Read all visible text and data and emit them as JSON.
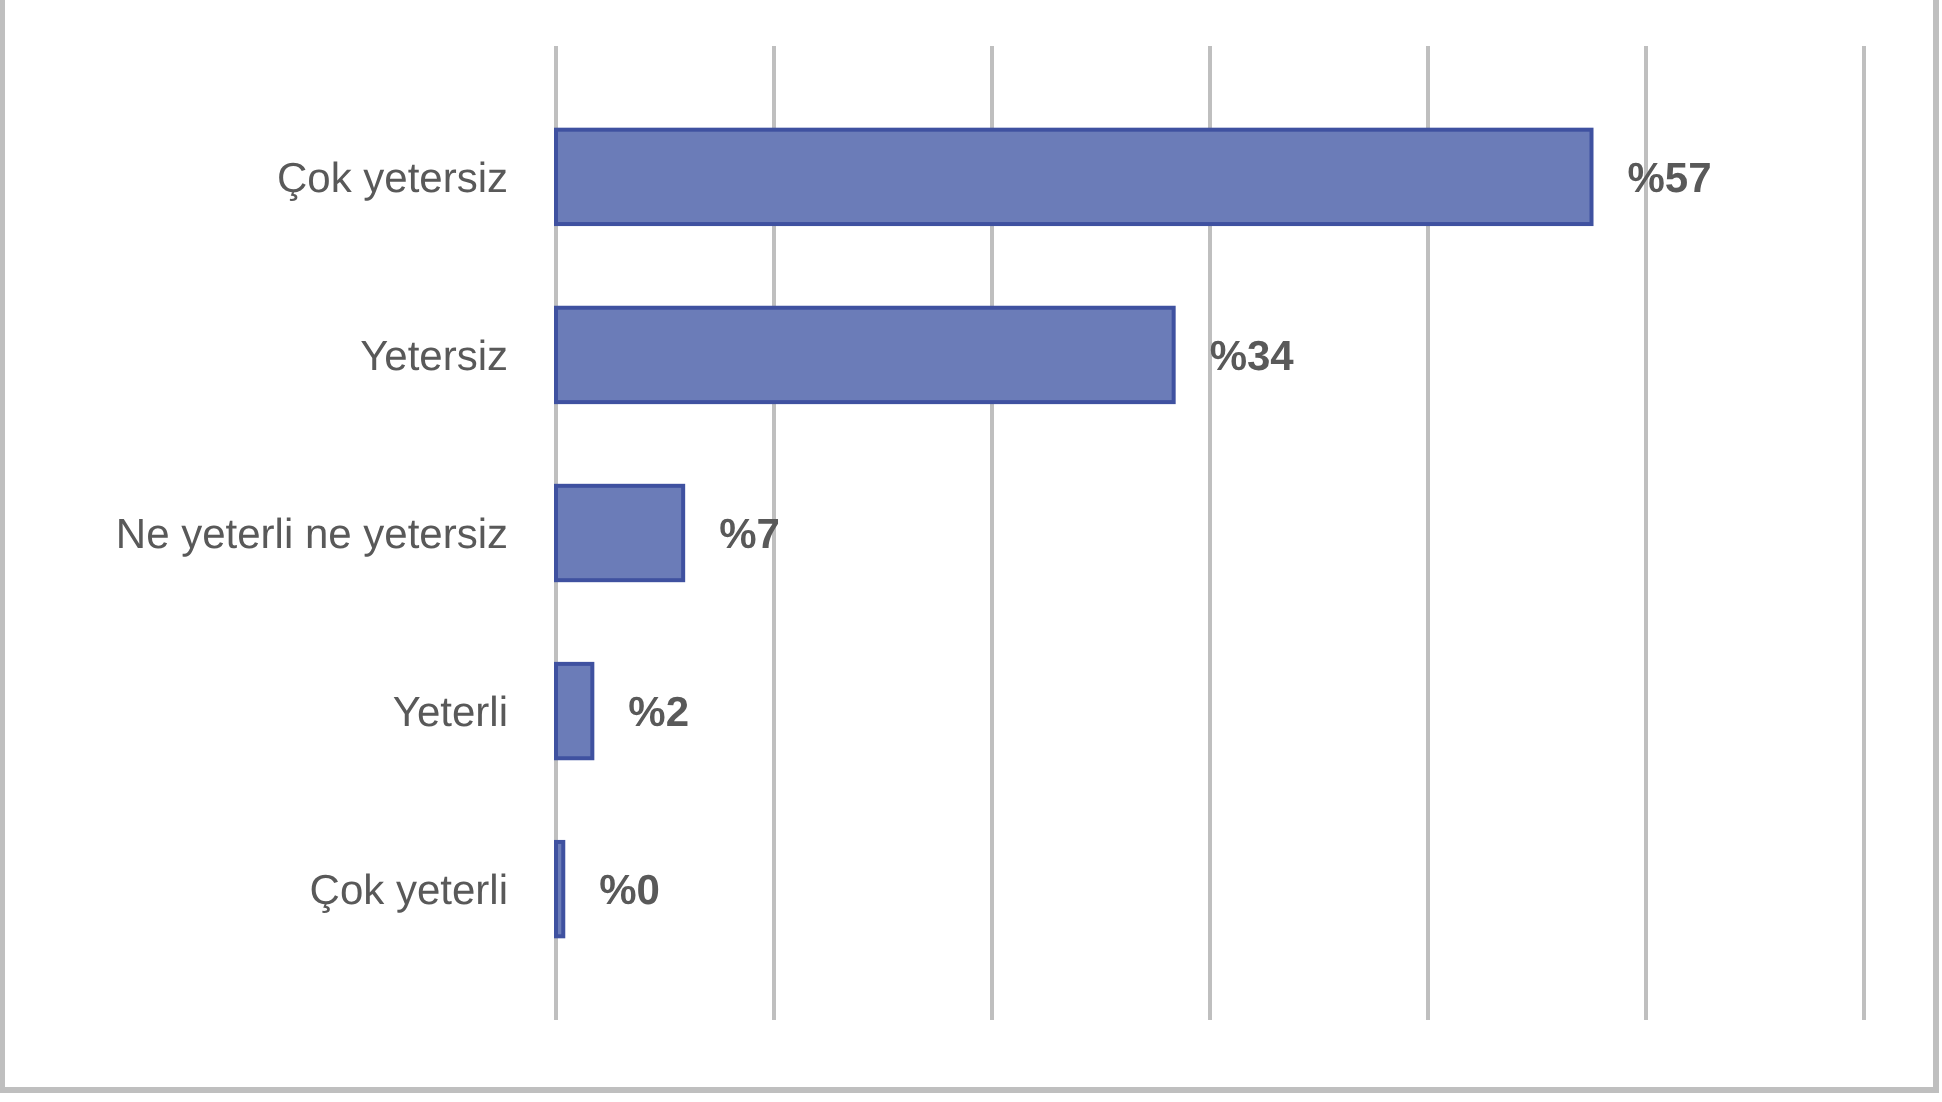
{
  "chart_data": {
    "type": "bar",
    "orientation": "horizontal",
    "categories": [
      "Çok yetersiz",
      "Yetersiz",
      "Ne yeterli ne yetersiz",
      "Yeterli",
      "Çok yeterli"
    ],
    "values": [
      57,
      34,
      7,
      2,
      0.4
    ],
    "value_labels": [
      "%57",
      "%34",
      "%7",
      "%2",
      "%0"
    ],
    "color": "#6b7cb8",
    "xlim": [
      0,
      72
    ],
    "xticks": [
      {
        "value": 0,
        "label": null
      },
      {
        "value": 12,
        "label": null
      },
      {
        "value": 24,
        "label": null
      },
      {
        "value": 36,
        "label": null
      },
      {
        "value": 48,
        "label": null
      },
      {
        "value": 60,
        "label": null
      },
      {
        "value": 72,
        "label": null
      }
    ],
    "grid": "x",
    "tick_labels": "y"
  }
}
